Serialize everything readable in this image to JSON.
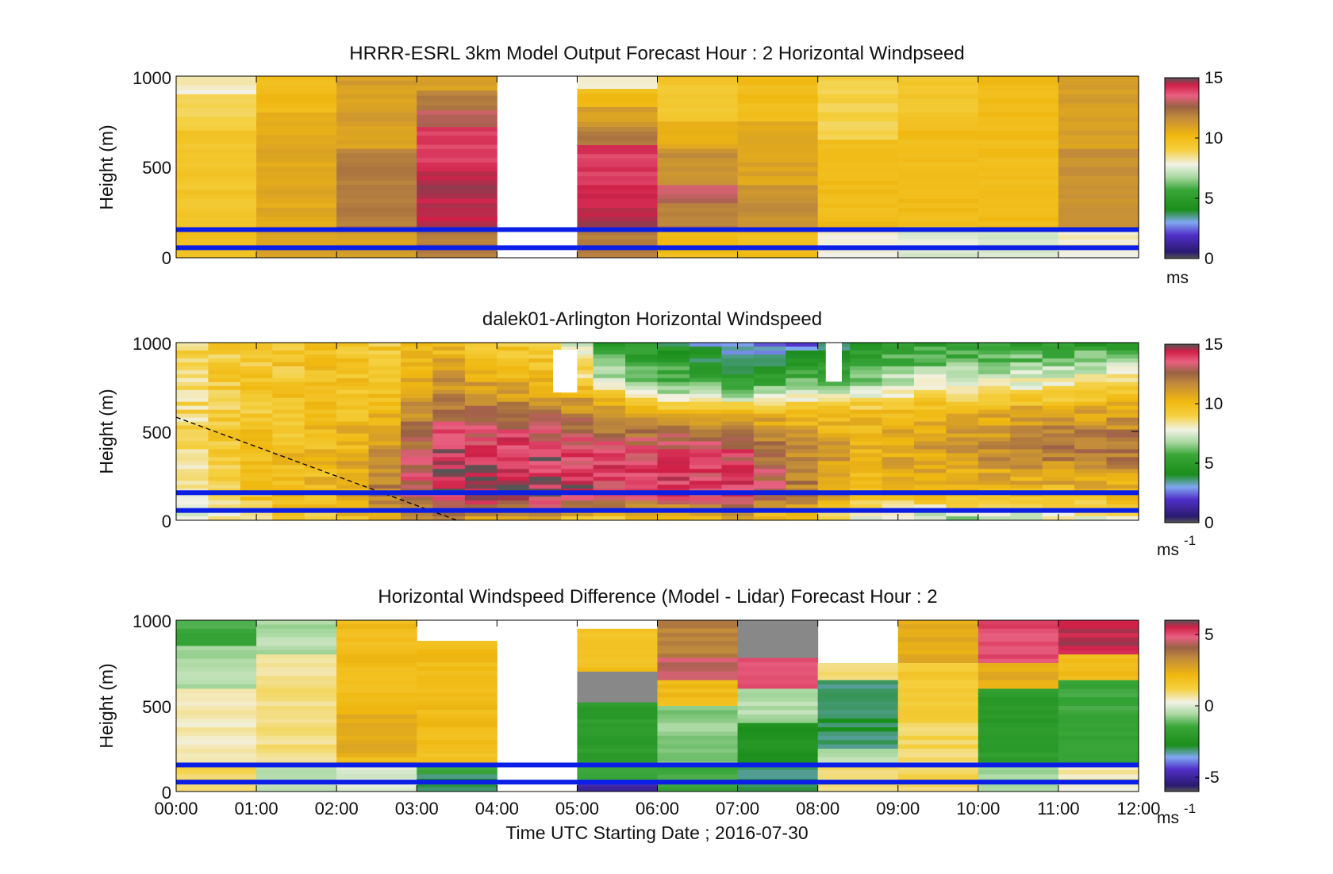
{
  "figure": {
    "xlabel": "Time UTC  Starting Date ; 2016-07-30",
    "time_ticks": [
      "00:00",
      "01:00",
      "02:00",
      "03:00",
      "04:00",
      "05:00",
      "06:00",
      "07:00",
      "08:00",
      "09:00",
      "10:00",
      "11:00",
      "12:00"
    ]
  },
  "chart_data": [
    {
      "type": "heatmap",
      "title": "HRRR-ESRL 3km Model Output   Forecast Hour : 2 Horizontal Windpseed",
      "ylabel": "Height (m)",
      "ylim": [
        0,
        1000
      ],
      "y_ticks": [
        0,
        500,
        1000
      ],
      "xlim": [
        0,
        12
      ],
      "colorbar": {
        "min": 0,
        "max": 15,
        "ticks": [
          0,
          5,
          10,
          15
        ],
        "unit_label": "ms",
        "unit_sup": ""
      },
      "blue_lines_height_m": [
        55,
        155
      ],
      "columns": [
        {
          "hour": 0,
          "levels": [
            {
              "top": 1000,
              "value": 8.0
            },
            {
              "top": 900,
              "value": 9.0
            },
            {
              "top": 700,
              "value": 9.5
            },
            {
              "top": 150,
              "value": 9.8
            }
          ]
        },
        {
          "hour": 1,
          "levels": [
            {
              "top": 1000,
              "value": 10.0
            },
            {
              "top": 800,
              "value": 10.7
            },
            {
              "top": 150,
              "value": 10.8
            }
          ]
        },
        {
          "hour": 2,
          "levels": [
            {
              "top": 1000,
              "value": 11.0
            },
            {
              "top": 600,
              "value": 12.0
            },
            {
              "top": 150,
              "value": 11.0
            }
          ]
        },
        {
          "hour": 3,
          "levels": [
            {
              "top": 1000,
              "value": 11.0
            },
            {
              "top": 920,
              "value": 12.0
            },
            {
              "top": 810,
              "value": 13.0
            },
            {
              "top": 720,
              "value": 14.0
            },
            {
              "top": 500,
              "value": 14.5
            },
            {
              "top": 150,
              "value": 12.0
            }
          ]
        },
        {
          "hour": 5,
          "levels": [
            {
              "top": 1000,
              "value": 8.0
            },
            {
              "top": 930,
              "value": 10.0
            },
            {
              "top": 830,
              "value": 11.0
            },
            {
              "top": 720,
              "value": 12.0
            },
            {
              "top": 620,
              "value": 14.0
            },
            {
              "top": 400,
              "value": 14.5
            },
            {
              "top": 150,
              "value": 12.0
            }
          ]
        },
        {
          "hour": 6,
          "levels": [
            {
              "top": 1000,
              "value": 9.5
            },
            {
              "top": 750,
              "value": 10.5
            },
            {
              "top": 600,
              "value": 11.5
            },
            {
              "top": 400,
              "value": 13.0
            },
            {
              "top": 300,
              "value": 12.0
            },
            {
              "top": 150,
              "value": 10.0
            }
          ]
        },
        {
          "hour": 7,
          "levels": [
            {
              "top": 1000,
              "value": 10.0
            },
            {
              "top": 750,
              "value": 10.8
            },
            {
              "top": 400,
              "value": 11.5
            },
            {
              "top": 150,
              "value": 10.0
            }
          ]
        },
        {
          "hour": 8,
          "levels": [
            {
              "top": 1000,
              "value": 9.0
            },
            {
              "top": 650,
              "value": 10.0
            },
            {
              "top": 150,
              "value": 8.0
            }
          ]
        },
        {
          "hour": 9,
          "levels": [
            {
              "top": 1000,
              "value": 9.5
            },
            {
              "top": 750,
              "value": 10.0
            },
            {
              "top": 150,
              "value": 7.5
            }
          ]
        },
        {
          "hour": 10,
          "levels": [
            {
              "top": 1000,
              "value": 10.0
            },
            {
              "top": 150,
              "value": 7.5
            }
          ]
        },
        {
          "hour": 11,
          "levels": [
            {
              "top": 1000,
              "value": 11.0
            },
            {
              "top": 600,
              "value": 11.5
            },
            {
              "top": 150,
              "value": 8.0
            }
          ]
        }
      ]
    },
    {
      "type": "heatmap",
      "title": "dalek01-Arlington  Horizontal Windspeed",
      "ylabel": "Height (m)",
      "ylim": [
        0,
        1000
      ],
      "y_ticks": [
        0,
        500,
        1000
      ],
      "xlim": [
        0,
        12
      ],
      "colorbar": {
        "min": 0,
        "max": 15,
        "ticks": [
          0,
          5,
          10,
          15
        ],
        "unit_label": "ms",
        "unit_sup": "-1"
      },
      "blue_lines_height_m": [
        55,
        155
      ],
      "mixing_layer_line": [
        [
          0,
          580
        ],
        [
          3.5,
          0
        ]
      ],
      "profiles": [
        {
          "hour": 0.0,
          "h": [
            0,
            150,
            400,
            700,
            1000
          ],
          "v": [
            7.0,
            8.0,
            8.5,
            8.5,
            9.0
          ]
        },
        {
          "hour": 1.0,
          "h": [
            0,
            150,
            400,
            700,
            1000
          ],
          "v": [
            9.0,
            9.5,
            9.8,
            9.5,
            9.5
          ]
        },
        {
          "hour": 2.0,
          "h": [
            0,
            150,
            400,
            700,
            1000
          ],
          "v": [
            9.5,
            10.2,
            10.0,
            9.8,
            9.5
          ]
        },
        {
          "hour": 2.6,
          "h": [
            0,
            150,
            400,
            700,
            1000
          ],
          "v": [
            10.0,
            12.0,
            11.0,
            10.0,
            9.5
          ]
        },
        {
          "hour": 3.3,
          "h": [
            0,
            150,
            400,
            700,
            1000
          ],
          "v": [
            11.0,
            14.5,
            14.0,
            12.0,
            9.8
          ]
        },
        {
          "hour": 4.0,
          "h": [
            0,
            150,
            400,
            700,
            1000
          ],
          "v": [
            11.0,
            14.8,
            14.5,
            11.0,
            9.5
          ]
        },
        {
          "hour": 4.8,
          "h": [
            0,
            150,
            400,
            700,
            1000
          ],
          "v": [
            10.0,
            14.5,
            14.0,
            11.0,
            9.0
          ]
        },
        {
          "hour": 5.3,
          "h": [
            0,
            150,
            400,
            700,
            800,
            1000
          ],
          "v": [
            9.0,
            14.0,
            13.5,
            10.5,
            7.0,
            5.0
          ]
        },
        {
          "hour": 6.0,
          "h": [
            0,
            150,
            400,
            600,
            750,
            1000
          ],
          "v": [
            9.5,
            14.0,
            13.5,
            10.5,
            6.5,
            4.5
          ]
        },
        {
          "hour": 7.0,
          "h": [
            0,
            150,
            400,
            600,
            750,
            1000
          ],
          "v": [
            10.0,
            14.0,
            13.5,
            10.5,
            5.5,
            2.5
          ]
        },
        {
          "hour": 7.8,
          "h": [
            0,
            150,
            400,
            600,
            750,
            1000
          ],
          "v": [
            9.5,
            12.0,
            11.5,
            10.0,
            6.5,
            2.5
          ]
        },
        {
          "hour": 8.6,
          "h": [
            0,
            150,
            400,
            600,
            750,
            1000
          ],
          "v": [
            7.5,
            10.0,
            10.5,
            10.0,
            7.0,
            4.5
          ]
        },
        {
          "hour": 9.5,
          "h": [
            0,
            150,
            400,
            600,
            750,
            1000
          ],
          "v": [
            6.5,
            10.0,
            11.0,
            10.5,
            8.0,
            5.0
          ]
        },
        {
          "hour": 10.5,
          "h": [
            0,
            150,
            400,
            600,
            750,
            1000
          ],
          "v": [
            7.0,
            10.0,
            12.0,
            11.0,
            8.0,
            5.0
          ]
        },
        {
          "hour": 11.5,
          "h": [
            0,
            150,
            400,
            600,
            750,
            1000
          ],
          "v": [
            8.0,
            10.0,
            12.5,
            11.0,
            9.0,
            5.0
          ]
        }
      ],
      "data_gaps": [
        {
          "x0": 4.7,
          "x1": 5.0,
          "y0": 720,
          "y1": 960
        },
        {
          "x0": 8.1,
          "x1": 8.3,
          "y0": 780,
          "y1": 1000
        }
      ]
    },
    {
      "type": "heatmap",
      "title": "Horizontal Windspeed Difference (Model - Lidar) Forecast Hour : 2",
      "ylabel": "Height (m)",
      "ylim": [
        0,
        1000
      ],
      "y_ticks": [
        0,
        500,
        1000
      ],
      "xlim": [
        0,
        12
      ],
      "colorbar": {
        "min": -6,
        "max": 6,
        "ticks": [
          -5,
          0,
          5
        ],
        "unit_label": "ms",
        "unit_sup": "-1"
      },
      "blue_lines_height_m": [
        55,
        155
      ],
      "columns": [
        {
          "hour": 0,
          "levels": [
            {
              "top": 1000,
              "value": -1.5
            },
            {
              "top": 850,
              "value": -0.5
            },
            {
              "top": 600,
              "value": 0.5
            },
            {
              "top": 150,
              "value": 1.0
            }
          ]
        },
        {
          "hour": 1,
          "levels": [
            {
              "top": 1000,
              "value": -0.5
            },
            {
              "top": 800,
              "value": 0.8
            },
            {
              "top": 150,
              "value": -0.5
            }
          ]
        },
        {
          "hour": 2,
          "levels": [
            {
              "top": 1000,
              "value": 2.0
            },
            {
              "top": 450,
              "value": 2.5
            },
            {
              "top": 200,
              "value": 2.0
            },
            {
              "top": 150,
              "value": 0.0
            }
          ]
        },
        {
          "hour": 3,
          "levels": [
            {
              "top": 880,
              "value": 2.0
            },
            {
              "top": 250,
              "value": 1.8
            },
            {
              "top": 150,
              "value": -1.5
            },
            {
              "top": 100,
              "value": -3.0
            }
          ]
        },
        {
          "hour": 5,
          "levels": [
            {
              "top": 950,
              "value": 1.8
            },
            {
              "top": 700,
              "value": null
            },
            {
              "top": 520,
              "value": -2.0
            },
            {
              "top": 150,
              "value": -1.5
            },
            {
              "top": 60,
              "value": -5.0
            }
          ]
        },
        {
          "hour": 6,
          "levels": [
            {
              "top": 1000,
              "value": 3.5
            },
            {
              "top": 780,
              "value": 4.5
            },
            {
              "top": 650,
              "value": 2.0
            },
            {
              "top": 500,
              "value": -0.8
            },
            {
              "top": 150,
              "value": -1.5
            }
          ]
        },
        {
          "hour": 7,
          "levels": [
            {
              "top": 1000,
              "value": null
            },
            {
              "top": 780,
              "value": 5.0
            },
            {
              "top": 600,
              "value": -0.5
            },
            {
              "top": 400,
              "value": -2.5
            },
            {
              "top": 150,
              "value": -3.0
            }
          ]
        },
        {
          "hour": 8,
          "levels": [
            {
              "top": 750,
              "value": 1.0
            },
            {
              "top": 650,
              "value": -3.0
            },
            {
              "top": 250,
              "value": -0.5
            },
            {
              "top": 150,
              "value": 1.0
            }
          ]
        },
        {
          "hour": 9,
          "levels": [
            {
              "top": 1000,
              "value": 2.5
            },
            {
              "top": 750,
              "value": 1.5
            },
            {
              "top": 400,
              "value": 1.0
            },
            {
              "top": 150,
              "value": 1.0
            }
          ]
        },
        {
          "hour": 10,
          "levels": [
            {
              "top": 1000,
              "value": 5.0
            },
            {
              "top": 750,
              "value": 2.5
            },
            {
              "top": 600,
              "value": -2.0
            },
            {
              "top": 150,
              "value": -0.5
            }
          ]
        },
        {
          "hour": 11,
          "levels": [
            {
              "top": 1000,
              "value": 5.5
            },
            {
              "top": 800,
              "value": 2.0
            },
            {
              "top": 650,
              "value": -1.5
            },
            {
              "top": 150,
              "value": 0.5
            }
          ]
        }
      ]
    }
  ]
}
